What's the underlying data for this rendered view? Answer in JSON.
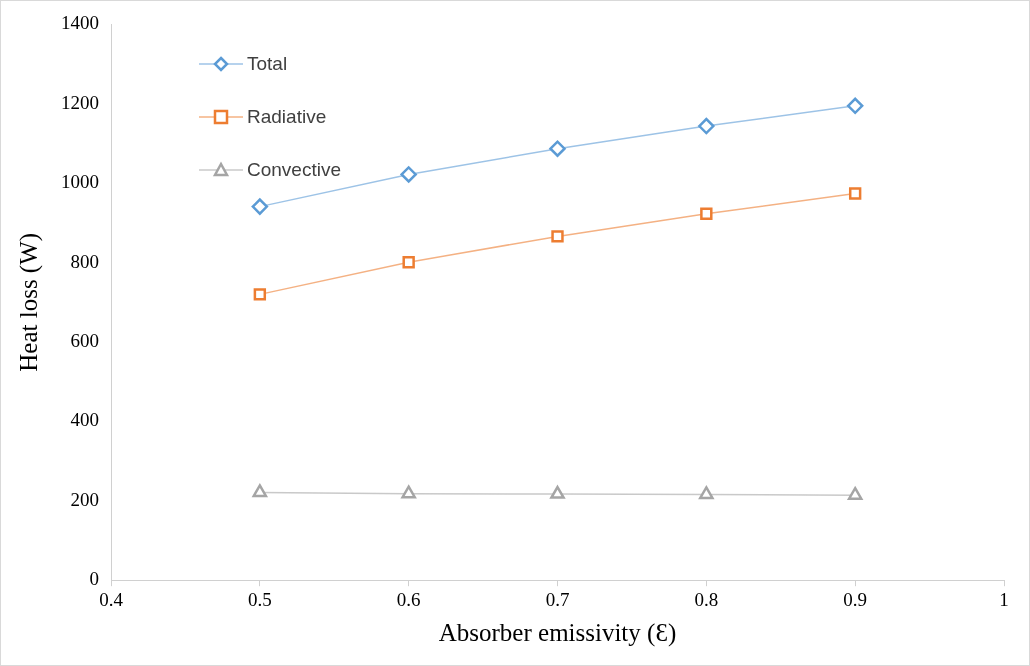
{
  "chart_data": {
    "type": "line",
    "xlabel": "Absorber emissivity (Ɛ)",
    "ylabel": "Heat loss (W)",
    "x": [
      0.5,
      0.6,
      0.7,
      0.8,
      0.9
    ],
    "series": [
      {
        "name": "Total",
        "color": "#5b9bd5",
        "marker": "diamond",
        "values": [
          941,
          1022,
          1087,
          1144,
          1195
        ]
      },
      {
        "name": "Radiative",
        "color": "#ed7d31",
        "marker": "square",
        "values": [
          720,
          801,
          866,
          923,
          974
        ]
      },
      {
        "name": "Convective",
        "color": "#a5a5a5",
        "marker": "triangle",
        "values": [
          221,
          218,
          217,
          216,
          214
        ]
      }
    ],
    "xlim": [
      0.4,
      1
    ],
    "xticks": [
      0.4,
      0.5,
      0.6,
      0.7,
      0.8,
      0.9,
      1
    ],
    "ylim": [
      0,
      1400
    ],
    "yticks": [
      0,
      200,
      400,
      600,
      800,
      1000,
      1200,
      1400
    ],
    "grid": false,
    "legend": "top left"
  }
}
